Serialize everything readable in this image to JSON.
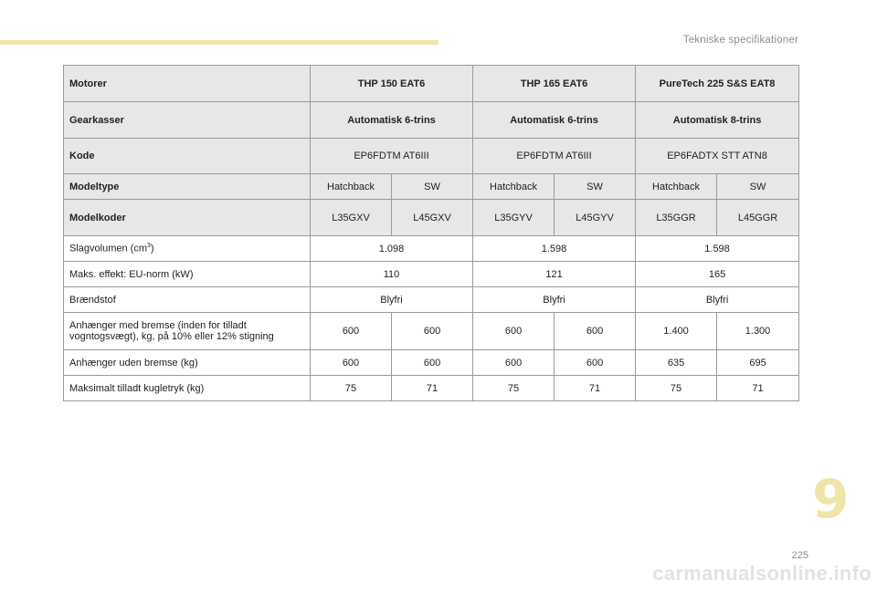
{
  "header": {
    "section_title": "Tekniske specifikationer"
  },
  "table": {
    "engine_row": {
      "label": "Motorer",
      "columns": [
        "THP 150 EAT6",
        "THP 165 EAT6",
        "PureTech 225 S&S EAT8"
      ]
    },
    "gearbox_row": {
      "label": "Gearkasser",
      "columns": [
        "Automatisk 6-trins",
        "Automatisk 6-trins",
        "Automatisk 8-trins"
      ]
    },
    "code_row": {
      "label": "Kode",
      "columns": [
        "EP6FDTM AT6III",
        "EP6FDTM AT6III",
        "EP6FADTX STT ATN8"
      ]
    },
    "model_type_row": {
      "label": "Modeltype",
      "cells": [
        "Hatchback",
        "SW",
        "Hatchback",
        "SW",
        "Hatchback",
        "SW"
      ]
    },
    "model_code_row": {
      "label": "Modelkoder",
      "cells": [
        "L35GXV",
        "L45GXV",
        "L35GYV",
        "L45GYV",
        "L35GGR",
        "L45GGR"
      ]
    },
    "displacement_row": {
      "label": "Slagvolumen (cm",
      "label_sup": "3",
      "label_suffix": ")",
      "columns": [
        "1.098",
        "1.598",
        "1.598"
      ]
    },
    "power_row": {
      "label": "Maks. effekt: EU-norm (kW)",
      "columns": [
        "110",
        "121",
        "165"
      ]
    },
    "fuel_row": {
      "label": "Brændstof",
      "columns": [
        "Blyfri",
        "Blyfri",
        "Blyfri"
      ]
    },
    "trailer_braked_row": {
      "label_line1": "Anhænger med bremse (inden for tilladt",
      "label_line2": "vogntogsvægt), kg, på 10% eller 12% stigning",
      "cells": [
        "600",
        "600",
        "600",
        "600",
        "1.400",
        "1.300"
      ]
    },
    "trailer_unbraked_row": {
      "label": "Anhænger uden bremse (kg)",
      "cells": [
        "600",
        "600",
        "600",
        "600",
        "635",
        "695"
      ]
    },
    "towball_row": {
      "label": "Maksimalt tilladt kugletryk (kg)",
      "cells": [
        "75",
        "71",
        "75",
        "71",
        "75",
        "71"
      ]
    }
  },
  "footer": {
    "chapter_number": "9",
    "page_number": "225",
    "watermark": "carmanualsonline.info"
  },
  "colors": {
    "accent": "#efe5a8",
    "header_fill": "#e6e7e8",
    "border": "#9a9a9a"
  }
}
